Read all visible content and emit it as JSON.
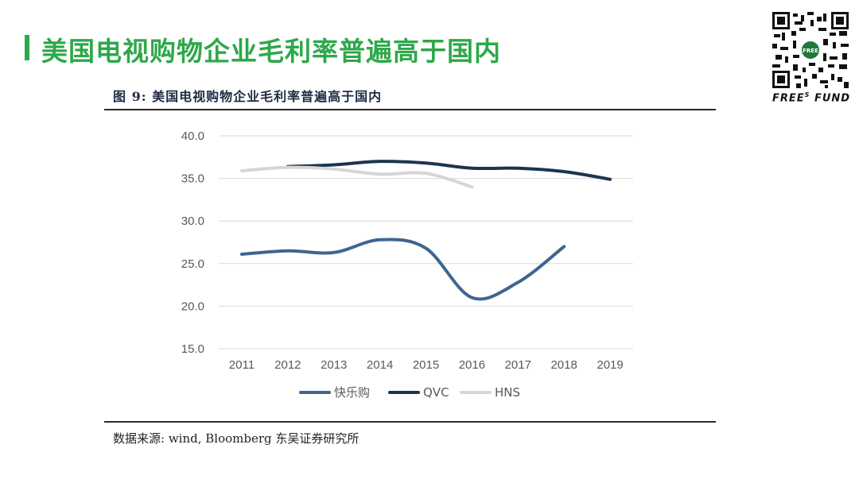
{
  "slide": {
    "title": "美国电视购物企业毛利率普遍高于国内",
    "figure_caption": "图 9:  美国电视购物企业毛利率普遍高于国内",
    "source": "数据来源:  wind, Bloomberg 东吴证券研究所"
  },
  "brand": {
    "name": "FREE",
    "superscript": "S",
    "suffix": "FUND",
    "qr_center_text": "FREE",
    "accent_color": "#2ea84a"
  },
  "chart_data": {
    "type": "line",
    "title": "",
    "xlabel": "",
    "ylabel": "",
    "categories": [
      "2011",
      "2012",
      "2013",
      "2014",
      "2015",
      "2016",
      "2017",
      "2018",
      "2019"
    ],
    "ylim": [
      15,
      40
    ],
    "yticks": [
      "15.0",
      "20.0",
      "25.0",
      "30.0",
      "35.0",
      "40.0"
    ],
    "grid": true,
    "legend_position": "bottom",
    "series": [
      {
        "name": "快乐购",
        "color": "#3d6690",
        "values": [
          26.1,
          26.5,
          26.3,
          27.8,
          26.8,
          21.0,
          22.8,
          27.0,
          null
        ]
      },
      {
        "name": "QVC",
        "color": "#1b3550",
        "values": [
          null,
          36.4,
          36.6,
          37.0,
          36.8,
          36.2,
          36.2,
          35.8,
          34.9
        ]
      },
      {
        "name": "HNS",
        "color": "#d6d6d6",
        "values": [
          35.9,
          36.3,
          36.1,
          35.5,
          35.6,
          34.0,
          null,
          null,
          null
        ]
      }
    ]
  }
}
